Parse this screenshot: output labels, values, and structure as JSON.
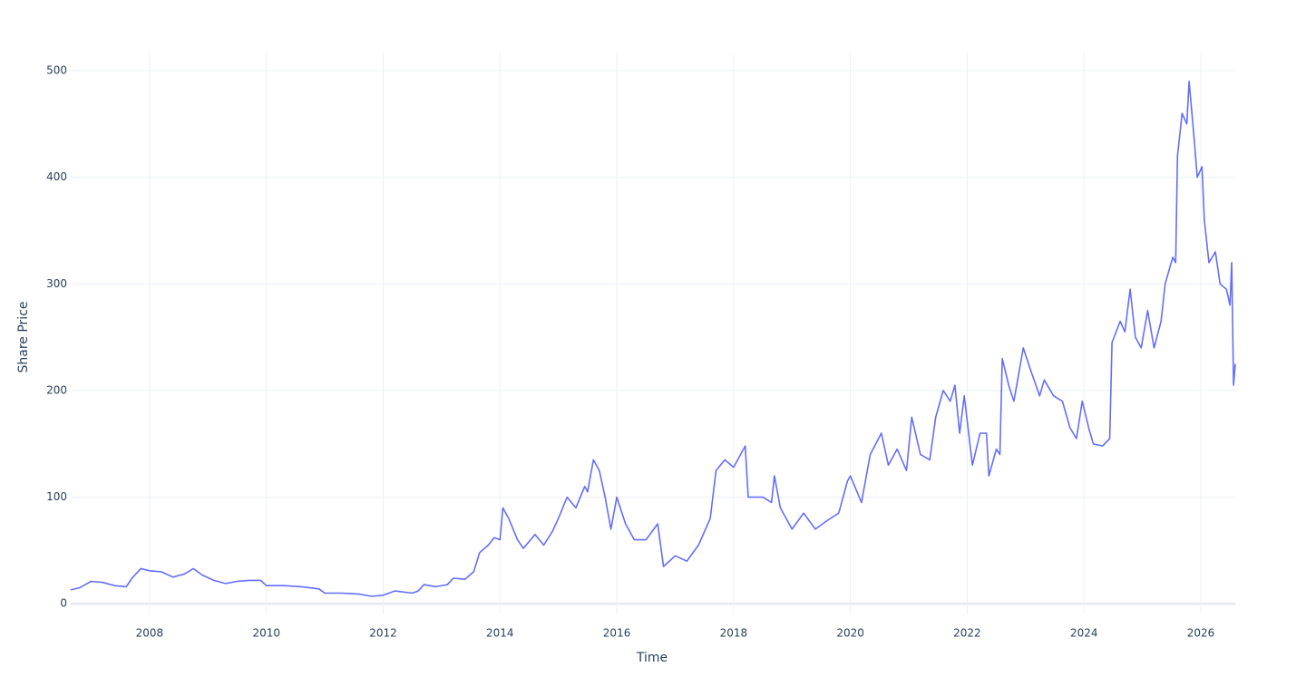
{
  "chart_data": {
    "type": "line",
    "xlabel": "Time",
    "ylabel": "Share Price",
    "xlim": [
      2006.65,
      2026.59
    ],
    "ylim": [
      -10,
      517
    ],
    "xticks": [
      2008,
      2010,
      2012,
      2014,
      2016,
      2018,
      2020,
      2022,
      2024,
      2026
    ],
    "yticks": [
      0,
      100,
      200,
      300,
      400,
      500
    ],
    "grid": true,
    "series": [
      {
        "name": "Share Price",
        "color": "#636efa",
        "x": [
          2006.65,
          2006.8,
          2007.0,
          2007.2,
          2007.4,
          2007.6,
          2007.7,
          2007.85,
          2008.0,
          2008.2,
          2008.4,
          2008.6,
          2008.75,
          2008.9,
          2009.1,
          2009.3,
          2009.5,
          2009.7,
          2009.9,
          2010.0,
          2010.3,
          2010.6,
          2010.9,
          2011.0,
          2011.3,
          2011.6,
          2011.8,
          2012.0,
          2012.2,
          2012.5,
          2012.6,
          2012.7,
          2012.9,
          2013.1,
          2013.2,
          2013.4,
          2013.55,
          2013.65,
          2013.8,
          2013.9,
          2014.0,
          2014.05,
          2014.15,
          2014.3,
          2014.4,
          2014.6,
          2014.75,
          2014.9,
          2015.0,
          2015.15,
          2015.3,
          2015.45,
          2015.5,
          2015.6,
          2015.7,
          2015.8,
          2015.9,
          2016.0,
          2016.15,
          2016.3,
          2016.5,
          2016.7,
          2016.8,
          2017.0,
          2017.2,
          2017.4,
          2017.6,
          2017.7,
          2017.85,
          2018.0,
          2018.2,
          2018.25,
          2018.5,
          2018.65,
          2018.7,
          2018.8,
          2019.0,
          2019.2,
          2019.4,
          2019.6,
          2019.8,
          2019.95,
          2020.0,
          2020.19,
          2020.34,
          2020.53,
          2020.65,
          2020.8,
          2020.96,
          2021.05,
          2021.2,
          2021.36,
          2021.46,
          2021.59,
          2021.71,
          2021.79,
          2021.87,
          2021.95,
          2022.09,
          2022.22,
          2022.33,
          2022.37,
          2022.5,
          2022.56,
          2022.6,
          2022.71,
          2022.8,
          2022.96,
          2023.08,
          2023.24,
          2023.32,
          2023.48,
          2023.63,
          2023.76,
          2023.87,
          2023.97,
          2024.08,
          2024.16,
          2024.32,
          2024.44,
          2024.48,
          2024.62,
          2024.7,
          2024.79,
          2024.88,
          2024.98,
          2025.09,
          2025.2,
          2025.32,
          2025.39,
          2025.52,
          2025.57,
          2025.6,
          2025.68,
          2025.76,
          2025.8,
          2025.88,
          2025.94,
          2026.02,
          2026.06,
          2026.14,
          2026.25,
          2026.33,
          2026.44,
          2026.5,
          2026.53,
          2026.56,
          2026.59
        ],
        "values": [
          13,
          15,
          21,
          20,
          17,
          16,
          24,
          33,
          31,
          30,
          25,
          28,
          33,
          27,
          22,
          19,
          21,
          22,
          22,
          17,
          17,
          16,
          14,
          10,
          10,
          9,
          7,
          8,
          12,
          10,
          12,
          18,
          16,
          18,
          24,
          23,
          30,
          48,
          55,
          62,
          60,
          90,
          80,
          60,
          52,
          65,
          55,
          68,
          80,
          100,
          90,
          110,
          105,
          135,
          125,
          100,
          70,
          100,
          75,
          60,
          60,
          75,
          35,
          45,
          40,
          55,
          80,
          125,
          135,
          128,
          148,
          100,
          100,
          95,
          120,
          90,
          70,
          85,
          70,
          78,
          85,
          115,
          120,
          95,
          140,
          160,
          130,
          145,
          125,
          175,
          140,
          135,
          175,
          200,
          190,
          205,
          160,
          195,
          130,
          160,
          160,
          120,
          145,
          140,
          230,
          205,
          190,
          240,
          220,
          195,
          210,
          195,
          190,
          165,
          155,
          190,
          165,
          150,
          148,
          155,
          245,
          265,
          255,
          295,
          250,
          240,
          275,
          240,
          265,
          300,
          325,
          320,
          420,
          460,
          450,
          490,
          440,
          400,
          410,
          360,
          320,
          330,
          300,
          295,
          280,
          320,
          205,
          225
        ]
      }
    ]
  }
}
